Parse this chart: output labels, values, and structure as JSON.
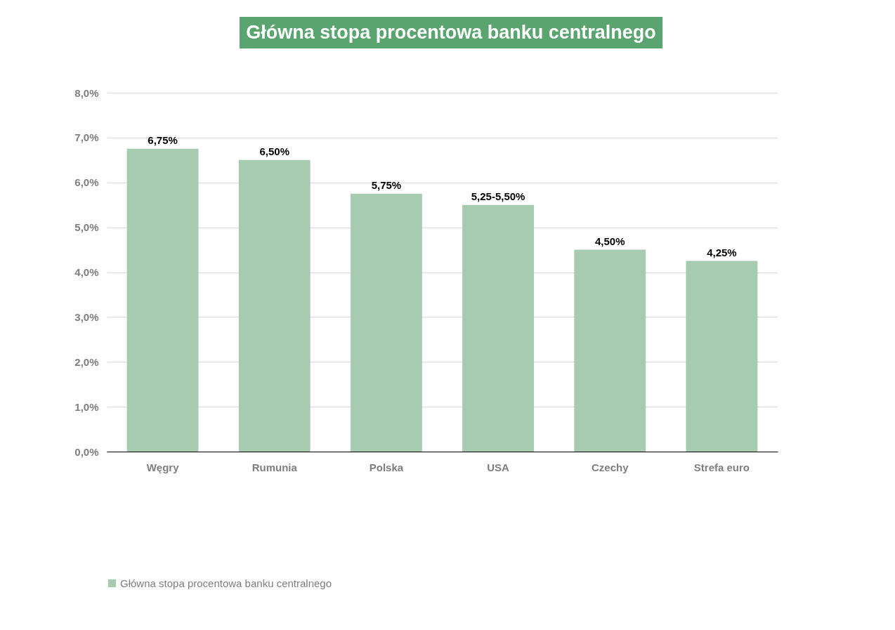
{
  "chart_data": {
    "type": "bar",
    "title": "Główna stopa procentowa banku centralnego",
    "categories": [
      "Węgry",
      "Rumunia",
      "Polska",
      "USA",
      "Czechy",
      "Strefa euro"
    ],
    "series": [
      {
        "name": "Główna stopa procentowa banku centralnego",
        "color": "#a7cbb0",
        "values": [
          6.75,
          6.5,
          5.75,
          5.5,
          4.5,
          4.25
        ]
      }
    ],
    "value_labels": [
      "6,75%",
      "6,50%",
      "5,75%",
      "5,25-5,50%",
      "4,50%",
      "4,25%"
    ],
    "ylim": [
      0,
      8
    ],
    "yticks": [
      {
        "value": 0,
        "label": "0,0%"
      },
      {
        "value": 1,
        "label": "1,0%"
      },
      {
        "value": 2,
        "label": "2,0%"
      },
      {
        "value": 3,
        "label": "3,0%"
      },
      {
        "value": 4,
        "label": "4,0%"
      },
      {
        "value": 5,
        "label": "5,0%"
      },
      {
        "value": 6,
        "label": "6,0%"
      },
      {
        "value": 7,
        "label": "7,0%"
      },
      {
        "value": 8,
        "label": "8,0%"
      }
    ],
    "grid": "y",
    "legend": "bottom"
  }
}
